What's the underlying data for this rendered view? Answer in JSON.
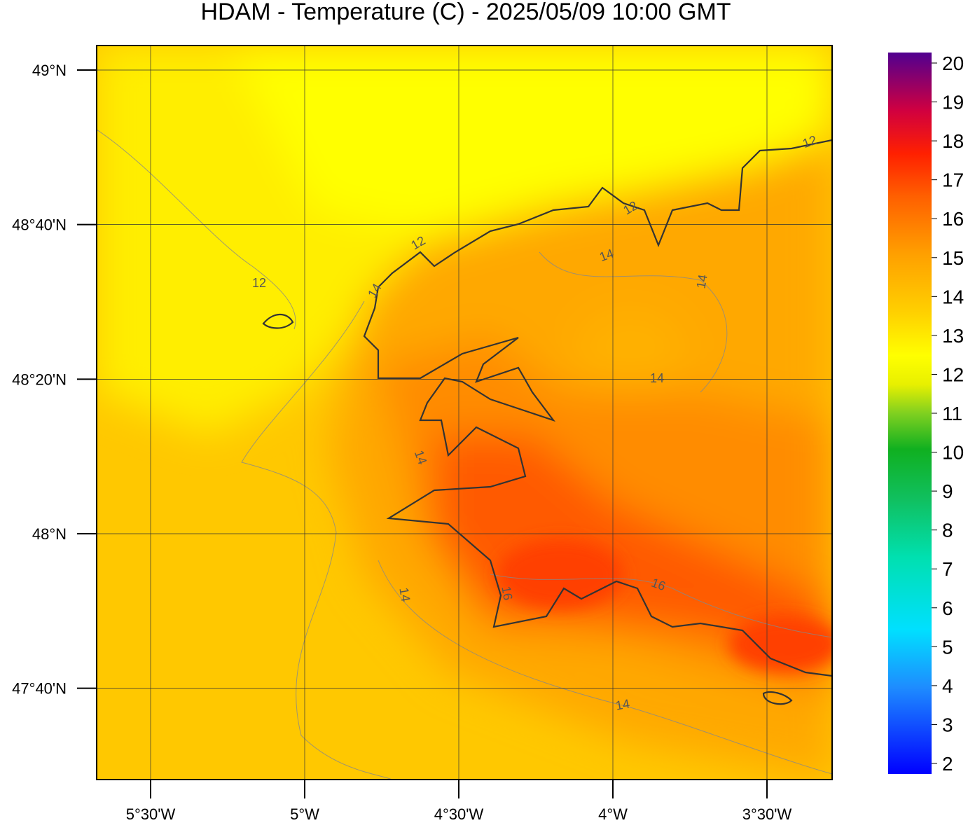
{
  "title": "HDAM - Temperature (C)  -  2025/05/09  10:00 GMT",
  "lat_ticks": [
    {
      "value": 49,
      "label": "49°N"
    },
    {
      "value": 48.6667,
      "label": "48°40'N"
    },
    {
      "value": 48.3333,
      "label": "48°20'N"
    },
    {
      "value": 48,
      "label": "48°N"
    },
    {
      "value": 47.6667,
      "label": "47°40'N"
    }
  ],
  "lon_ticks": [
    {
      "value": -5.5,
      "label": "5°30'W"
    },
    {
      "value": -5,
      "label": "5°W"
    },
    {
      "value": -4.5,
      "label": "4°30'W"
    },
    {
      "value": -4,
      "label": "4°W"
    },
    {
      "value": -3.5,
      "label": "3°30'W"
    }
  ],
  "colorbar_ticks": [
    2,
    3,
    4,
    5,
    6,
    7,
    8,
    9,
    10,
    11,
    12,
    13,
    14,
    15,
    16,
    17,
    18,
    19,
    20
  ],
  "contour_labels": [
    12,
    12,
    12,
    12,
    14,
    14,
    14,
    14,
    14,
    14,
    14,
    16,
    16
  ]
}
